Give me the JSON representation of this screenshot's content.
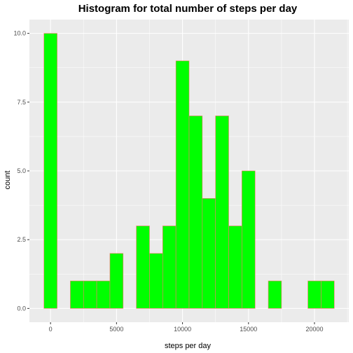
{
  "chart_data": {
    "type": "bar",
    "title": "Histogram for total number of steps per day",
    "xlabel": "steps per day",
    "ylabel": "count",
    "bin_width": 1000,
    "bins_start": [
      -500,
      500,
      1500,
      2500,
      3500,
      4500,
      5500,
      6500,
      7500,
      8500,
      9500,
      10500,
      11500,
      12500,
      13500,
      14500,
      15500,
      16500,
      17500,
      18500,
      19500,
      20500
    ],
    "values": [
      10,
      0,
      1,
      1,
      1,
      2,
      0,
      3,
      2,
      3,
      9,
      7,
      4,
      7,
      3,
      5,
      0,
      1,
      0,
      0,
      1,
      1
    ],
    "xlim": [
      -1600,
      22600
    ],
    "ylim": [
      -0.5,
      10.5
    ],
    "x_ticks": [
      0,
      5000,
      10000,
      15000,
      20000
    ],
    "x_tick_labels": [
      "0",
      "5000",
      "10000",
      "15000",
      "20000"
    ],
    "y_ticks": [
      0,
      2.5,
      5,
      7.5,
      10
    ],
    "y_tick_labels": [
      "0.0",
      "2.5",
      "5.0",
      "7.5",
      "10.0"
    ],
    "grid": true,
    "colors": {
      "fill": "#00ff00",
      "outline": "#f8766d",
      "panel": "#ebebeb",
      "grid": "#ffffff"
    }
  }
}
